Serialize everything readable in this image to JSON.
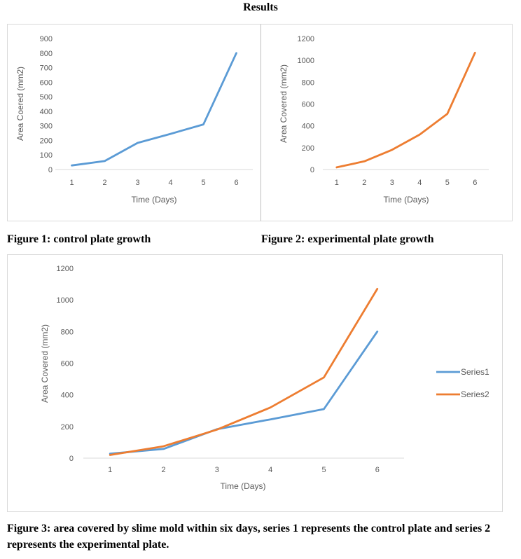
{
  "page": {
    "title": "Results",
    "captions": [
      "Figure 1: control plate growth",
      "Figure 2: experimental plate growth",
      "Figure 3: area covered by slime mold within six days, series 1 represents the control plate and series 2 represents the experimental plate."
    ]
  },
  "chart_data": [
    {
      "type": "line",
      "title": "",
      "xlabel": "Time (Days)",
      "ylabel": "Area Coered (mm2)",
      "x": [
        1,
        2,
        3,
        4,
        5,
        6
      ],
      "ylim": [
        0,
        900
      ],
      "yticks": [
        0,
        100,
        200,
        300,
        400,
        500,
        600,
        700,
        800,
        900
      ],
      "grid": false,
      "legend": "none",
      "series": [
        {
          "values": [
            28,
            58,
            183,
            245,
            310,
            800
          ],
          "color": "#5b9bd5"
        }
      ]
    },
    {
      "type": "line",
      "title": "",
      "xlabel": "Time (Days)",
      "ylabel": "Area Covered (mm2)",
      "x": [
        1,
        2,
        3,
        4,
        5,
        6
      ],
      "ylim": [
        0,
        1200
      ],
      "yticks": [
        0,
        200,
        400,
        600,
        800,
        1000,
        1200
      ],
      "grid": false,
      "legend": "none",
      "series": [
        {
          "values": [
            20,
            75,
            180,
            320,
            510,
            1070
          ],
          "color": "#ed7d31"
        }
      ]
    },
    {
      "type": "line",
      "title": "",
      "xlabel": "Time (Days)",
      "ylabel": "Area Covered (mm2)",
      "x": [
        1,
        2,
        3,
        4,
        5,
        6
      ],
      "ylim": [
        0,
        1200
      ],
      "yticks": [
        0,
        200,
        400,
        600,
        800,
        1000,
        1200
      ],
      "grid": false,
      "legend": "right",
      "series": [
        {
          "name": "Series1",
          "values": [
            28,
            58,
            183,
            245,
            310,
            800
          ],
          "color": "#5b9bd5"
        },
        {
          "name": "Series2",
          "values": [
            20,
            75,
            180,
            320,
            510,
            1070
          ],
          "color": "#ed7d31"
        }
      ]
    }
  ]
}
